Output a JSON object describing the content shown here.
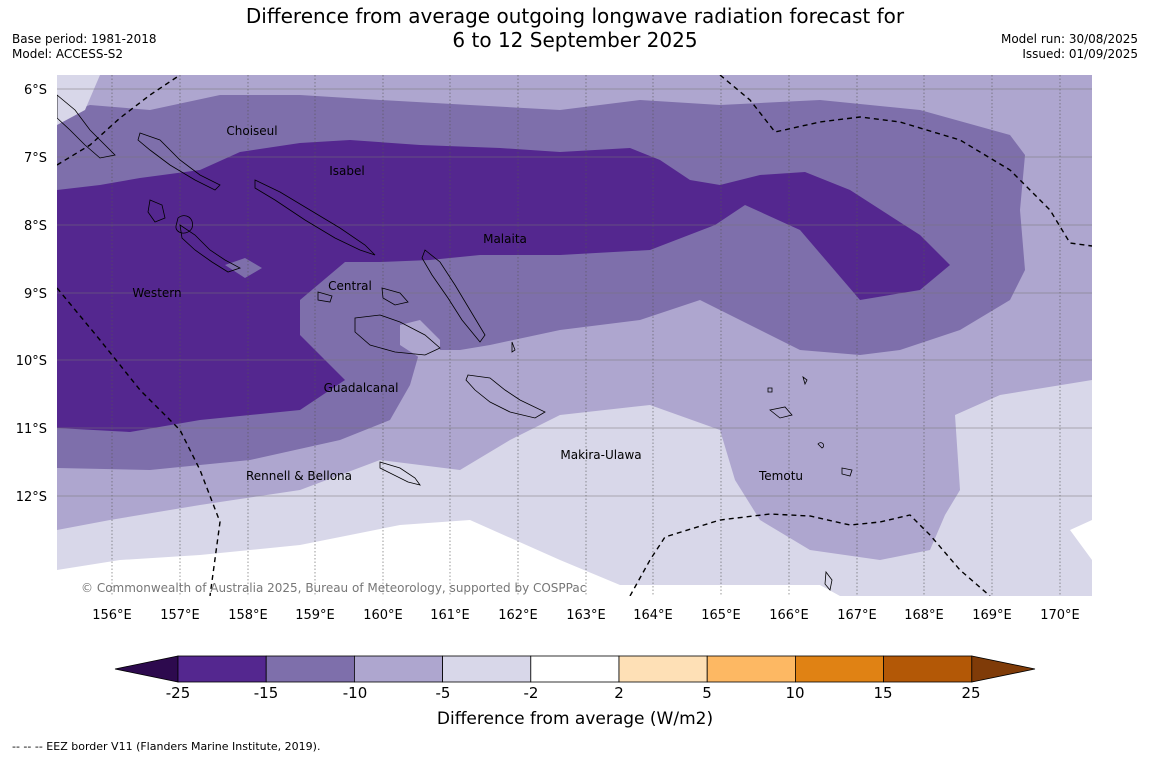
{
  "title": {
    "line1": "Difference from average outgoing longwave radiation forecast for",
    "line2": "6 to 12 September 2025"
  },
  "meta_left": {
    "base_period": "Base period: 1981-2018",
    "model": "Model: ACCESS-S2"
  },
  "meta_right": {
    "model_run": "Model run: 30/08/2025",
    "issued": "Issued: 01/09/2025"
  },
  "map": {
    "lat_labels": [
      "6°S",
      "7°S",
      "8°S",
      "9°S",
      "10°S",
      "11°S",
      "12°S"
    ],
    "lon_labels": [
      "156°E",
      "157°E",
      "158°E",
      "159°E",
      "160°E",
      "161°E",
      "162°E",
      "163°E",
      "164°E",
      "165°E",
      "166°E",
      "167°E",
      "168°E",
      "169°E",
      "170°E"
    ],
    "regions": [
      "Choiseul",
      "Isabel",
      "Malaita",
      "Central",
      "Western",
      "Guadalcanal",
      "Rennell & Bellona",
      "Makira-Ulawa",
      "Temotu"
    ],
    "copyright": "© Commonwealth of Australia 2025, Bureau of Meteorology, supported by COSPPac"
  },
  "colorbar": {
    "ticks": [
      "-25",
      "-15",
      "-10",
      "-5",
      "-2",
      "2",
      "5",
      "10",
      "15",
      "25"
    ],
    "colors": [
      "#2d0a4e",
      "#54278f",
      "#7e6fab",
      "#aea6cf",
      "#d8d7e9",
      "#ffffff",
      "#fee0b6",
      "#fdb863",
      "#e08214",
      "#b35806",
      "#7f3b08"
    ],
    "label": "Difference from average (W/m2)"
  },
  "footer": "--  --  -- EEZ border V11 (Flanders Marine Institute, 2019)."
}
